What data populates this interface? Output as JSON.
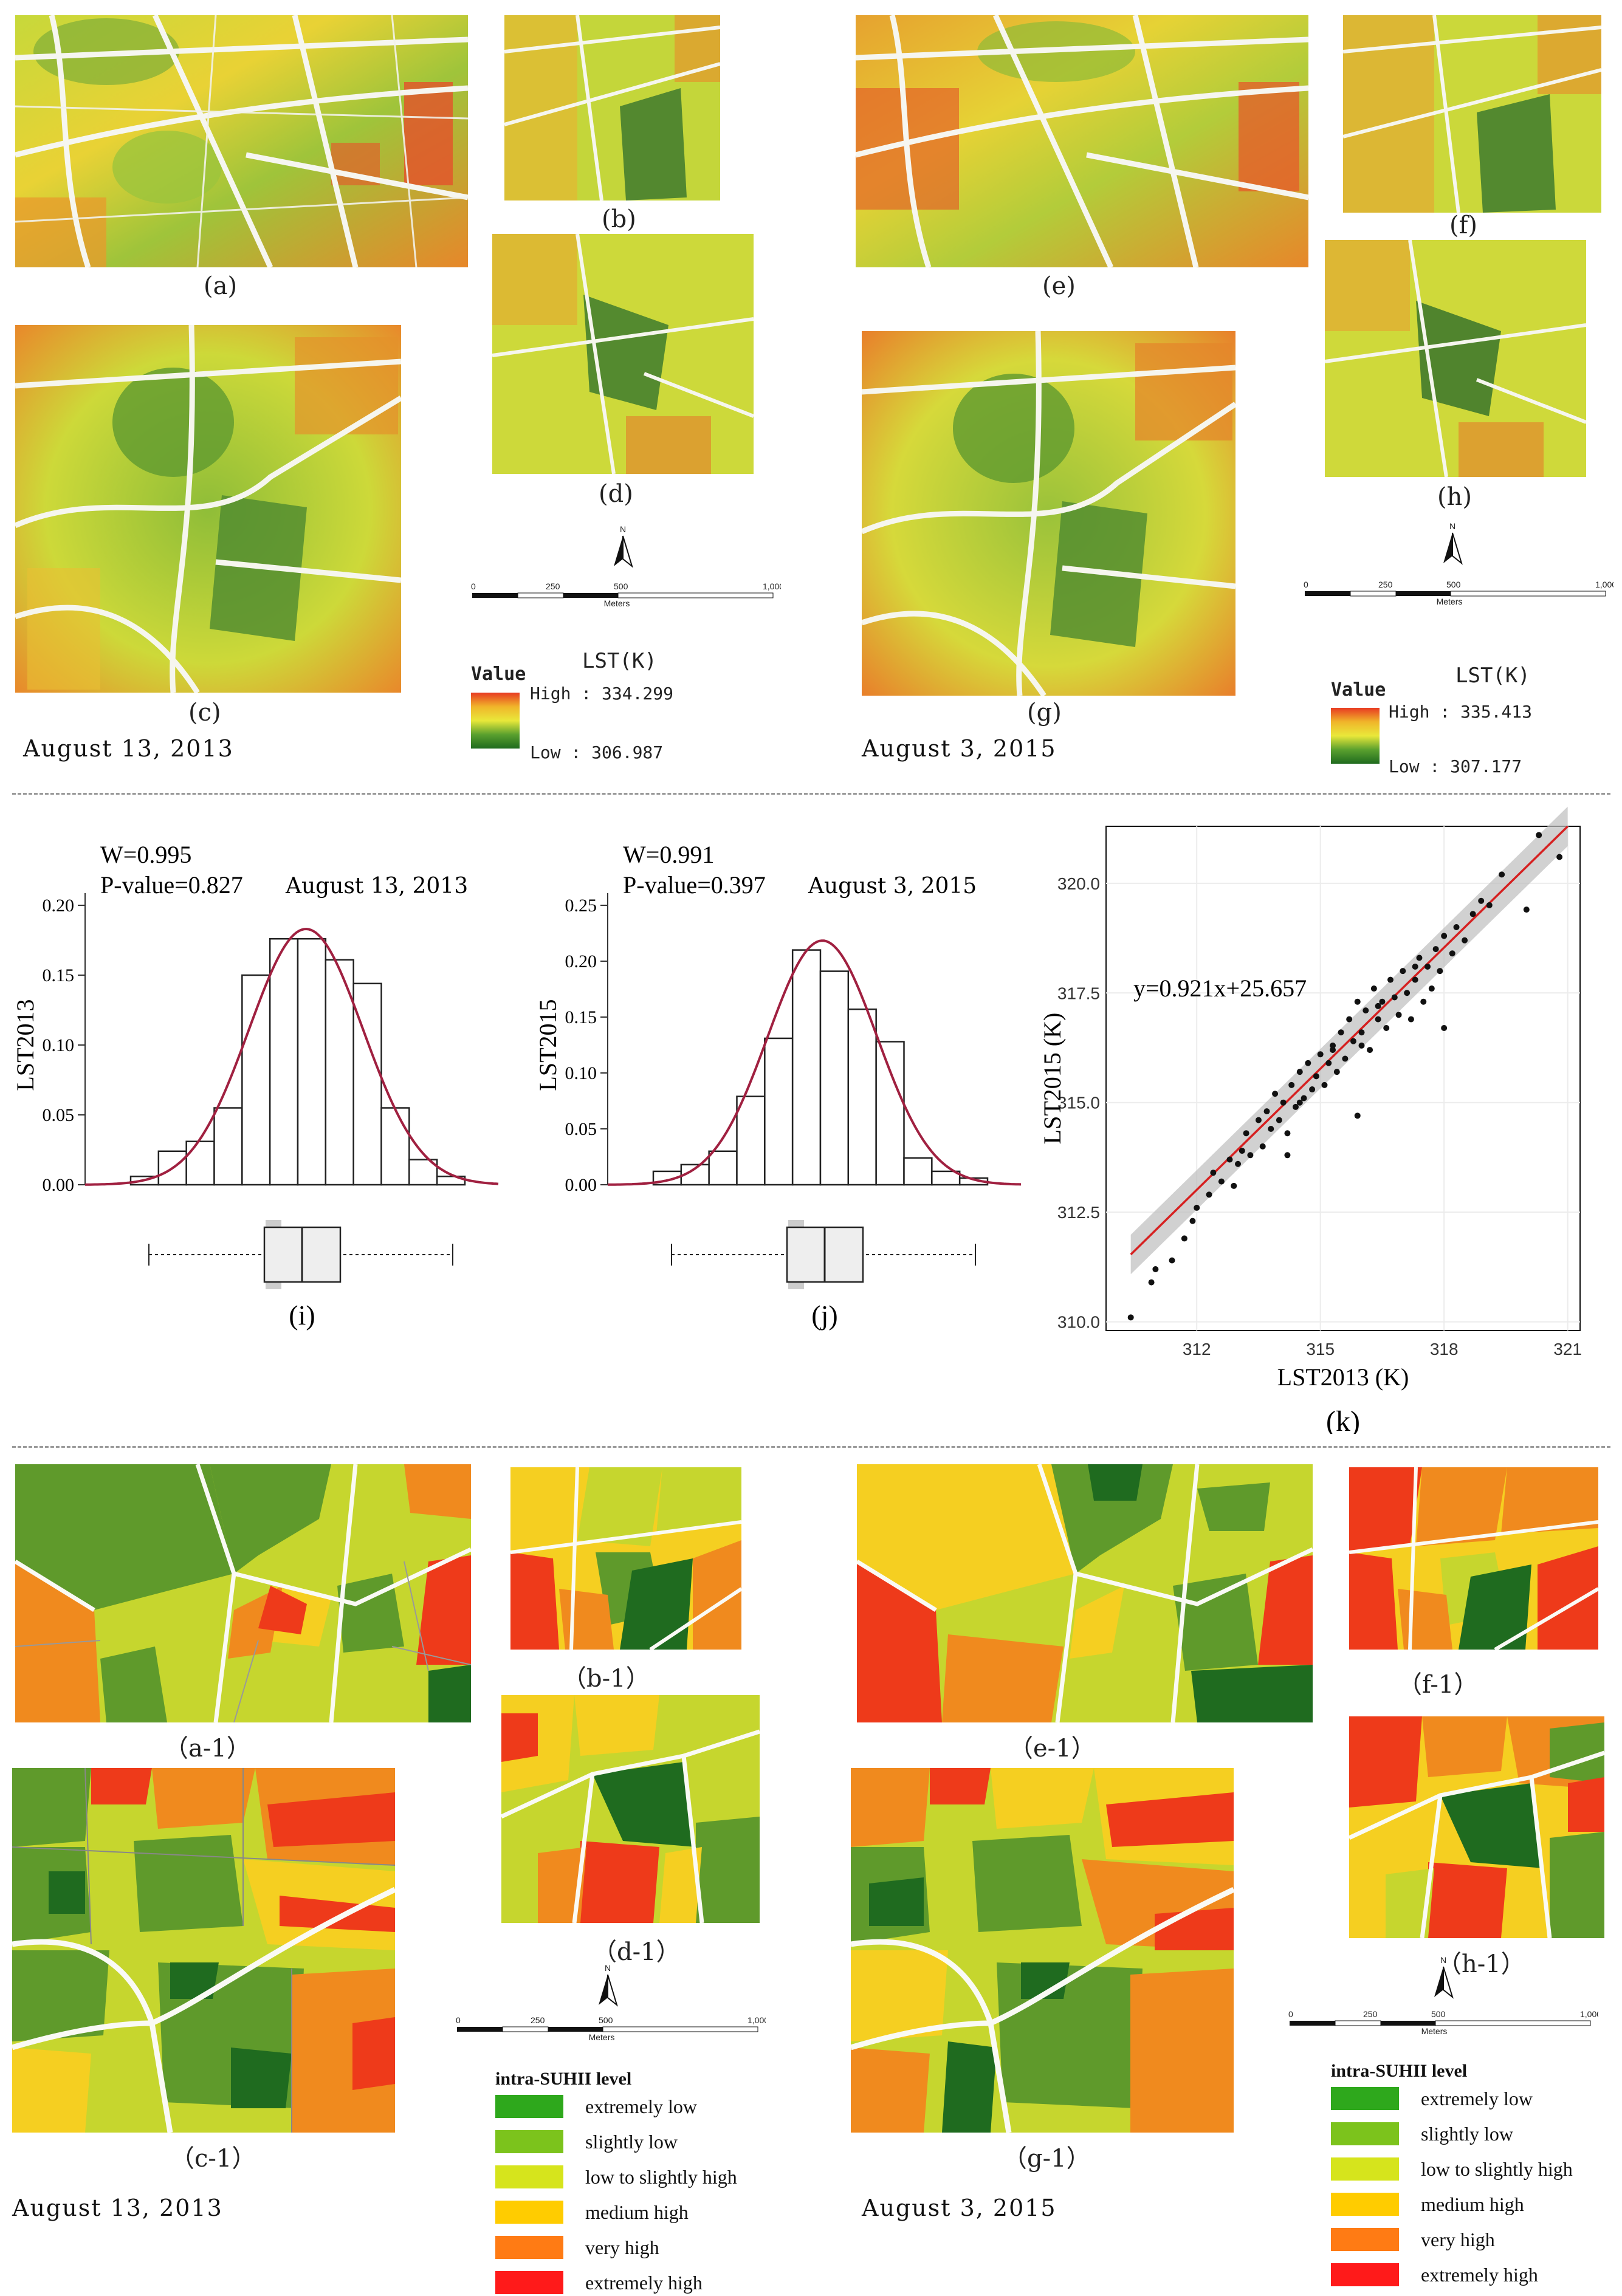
{
  "panels_lst": {
    "a": "(a)",
    "b": "(b)",
    "c": "(c)",
    "d": "(d)",
    "e": "(e)",
    "f": "(f)",
    "g": "(g)",
    "h": "(h)"
  },
  "panels_suhii": {
    "a": "（a-1）",
    "b": "（b-1）",
    "c": "（c-1）",
    "d": "（d-1）",
    "e": "（e-1）",
    "f": "（f-1）",
    "g": "（g-1）",
    "h": "（h-1）"
  },
  "dates": {
    "d2013": "August 13, 2013",
    "d2015": "August 3, 2015"
  },
  "north": "N",
  "scalebar": {
    "ticks": [
      "0",
      "250",
      "500",
      "1,000"
    ],
    "unit": "Meters"
  },
  "lst_legend_2013": {
    "value": "Value",
    "title": "LST(K)",
    "high": "High : 334.299",
    "low": "Low :  306.987"
  },
  "lst_legend_2015": {
    "value": "Value",
    "title": "LST(K)",
    "high": "High : 335.413",
    "low": "Low :  307.177"
  },
  "suhii_legend": {
    "title": "intra-SUHII level",
    "levels": [
      {
        "label": "extremely low",
        "color": "#2ea81c"
      },
      {
        "label": "slightly low",
        "color": "#7cc31c"
      },
      {
        "label": "low to slightly high",
        "color": "#d6e41c"
      },
      {
        "label": "medium high",
        "color": "#ffcc00"
      },
      {
        "label": "very high",
        "color": "#ff7b14"
      },
      {
        "label": "extremely high",
        "color": "#ff1a1a"
      }
    ]
  },
  "colors": {
    "dark_green": "#1f6b1f",
    "green": "#5f9a2b",
    "yellow_green": "#c6d62e",
    "yellow": "#f5cf21",
    "orange": "#f08a1e",
    "red": "#ee3a1a",
    "curve": "#a02040",
    "fit": "#d62020"
  },
  "chart_data": [
    {
      "type": "bar",
      "name": "histogram_2013",
      "ylabel": "LST2013",
      "annot_w": "W=0.995",
      "annot_p": "P-value=0.827",
      "annot_date": "August 13, 2013",
      "ylim": [
        0,
        0.2
      ],
      "yticks": [
        "0.00",
        "0.05",
        "0.10",
        "0.15",
        "0.20"
      ],
      "yticks_values": [
        0,
        0.05,
        0.1,
        0.15,
        0.2
      ],
      "values": [
        0.006,
        0.024,
        0.031,
        0.055,
        0.15,
        0.176,
        0.176,
        0.161,
        0.144,
        0.055,
        0.018,
        0.006
      ],
      "caption": "(i)"
    },
    {
      "type": "bar",
      "name": "histogram_2015",
      "ylabel": "LST2015",
      "annot_w": "W=0.991",
      "annot_p": "P-value=0.397",
      "annot_date": "August 3, 2015",
      "ylim": [
        0,
        0.25
      ],
      "yticks": [
        "0.00",
        "0.05",
        "0.10",
        "0.15",
        "0.20",
        "0.25"
      ],
      "yticks_values": [
        0,
        0.05,
        0.1,
        0.15,
        0.2,
        0.25
      ],
      "values": [
        0.012,
        0.018,
        0.03,
        0.079,
        0.131,
        0.21,
        0.191,
        0.157,
        0.128,
        0.024,
        0.012,
        0.006
      ],
      "caption": "(j)"
    },
    {
      "type": "scatter",
      "name": "lst_scatter",
      "xlabel": "LST2013 (K)",
      "ylabel": "LST2015 (K)",
      "equation": "y=0.921x+25.657",
      "fit": {
        "slope": 0.921,
        "intercept": 25.657
      },
      "xlim": [
        309.8,
        321.3
      ],
      "ylim": [
        309.8,
        321.3
      ],
      "xticks": [
        "312",
        "315",
        "318",
        "321"
      ],
      "xticks_values": [
        312,
        315,
        318,
        321
      ],
      "yticks": [
        "310.0",
        "312.5",
        "315.0",
        "317.5",
        "320.0"
      ],
      "yticks_values": [
        310.0,
        312.5,
        315.0,
        317.5,
        320.0
      ],
      "caption": "(k)",
      "points": [
        [
          310.4,
          310.1
        ],
        [
          310.9,
          310.9
        ],
        [
          311.0,
          311.2
        ],
        [
          311.4,
          311.4
        ],
        [
          311.7,
          311.9
        ],
        [
          311.9,
          312.3
        ],
        [
          312.0,
          312.6
        ],
        [
          312.3,
          312.9
        ],
        [
          312.4,
          313.4
        ],
        [
          312.6,
          313.2
        ],
        [
          312.8,
          313.7
        ],
        [
          312.9,
          313.1
        ],
        [
          313.1,
          313.9
        ],
        [
          313.2,
          314.3
        ],
        [
          313.3,
          313.8
        ],
        [
          313.5,
          314.6
        ],
        [
          313.6,
          314.0
        ],
        [
          313.7,
          314.8
        ],
        [
          313.8,
          314.4
        ],
        [
          313.9,
          315.2
        ],
        [
          314.0,
          314.6
        ],
        [
          314.1,
          315.0
        ],
        [
          314.2,
          314.3
        ],
        [
          314.3,
          315.4
        ],
        [
          314.4,
          314.9
        ],
        [
          314.5,
          315.7
        ],
        [
          314.6,
          315.1
        ],
        [
          314.7,
          315.9
        ],
        [
          314.8,
          315.3
        ],
        [
          314.9,
          315.6
        ],
        [
          315.0,
          316.1
        ],
        [
          315.1,
          315.4
        ],
        [
          315.2,
          315.9
        ],
        [
          315.3,
          316.3
        ],
        [
          315.4,
          315.7
        ],
        [
          315.5,
          316.6
        ],
        [
          315.6,
          316.0
        ],
        [
          315.7,
          316.9
        ],
        [
          315.8,
          316.4
        ],
        [
          315.9,
          317.3
        ],
        [
          316.0,
          316.6
        ],
        [
          316.1,
          317.1
        ],
        [
          316.2,
          316.2
        ],
        [
          316.3,
          317.6
        ],
        [
          316.4,
          316.9
        ],
        [
          316.5,
          317.3
        ],
        [
          316.6,
          316.7
        ],
        [
          316.7,
          317.8
        ],
        [
          316.8,
          317.4
        ],
        [
          316.9,
          317.0
        ],
        [
          317.0,
          318.0
        ],
        [
          317.1,
          317.5
        ],
        [
          317.2,
          316.9
        ],
        [
          317.3,
          317.8
        ],
        [
          317.4,
          318.3
        ],
        [
          317.5,
          317.3
        ],
        [
          317.6,
          318.1
        ],
        [
          317.7,
          317.6
        ],
        [
          317.8,
          318.5
        ],
        [
          317.9,
          318.0
        ],
        [
          318.0,
          318.8
        ],
        [
          318.2,
          318.4
        ],
        [
          318.3,
          319.0
        ],
        [
          318.5,
          318.7
        ],
        [
          318.7,
          319.3
        ],
        [
          318.9,
          319.6
        ],
        [
          319.1,
          319.5
        ],
        [
          319.4,
          320.2
        ],
        [
          320.0,
          319.4
        ],
        [
          320.3,
          321.1
        ],
        [
          320.8,
          320.6
        ],
        [
          315.3,
          316.2
        ],
        [
          314.5,
          315.0
        ],
        [
          316.0,
          316.3
        ],
        [
          313.0,
          313.6
        ],
        [
          316.4,
          317.2
        ],
        [
          317.3,
          318.1
        ],
        [
          315.9,
          314.7
        ],
        [
          314.2,
          313.8
        ],
        [
          318.0,
          316.7
        ]
      ]
    }
  ]
}
